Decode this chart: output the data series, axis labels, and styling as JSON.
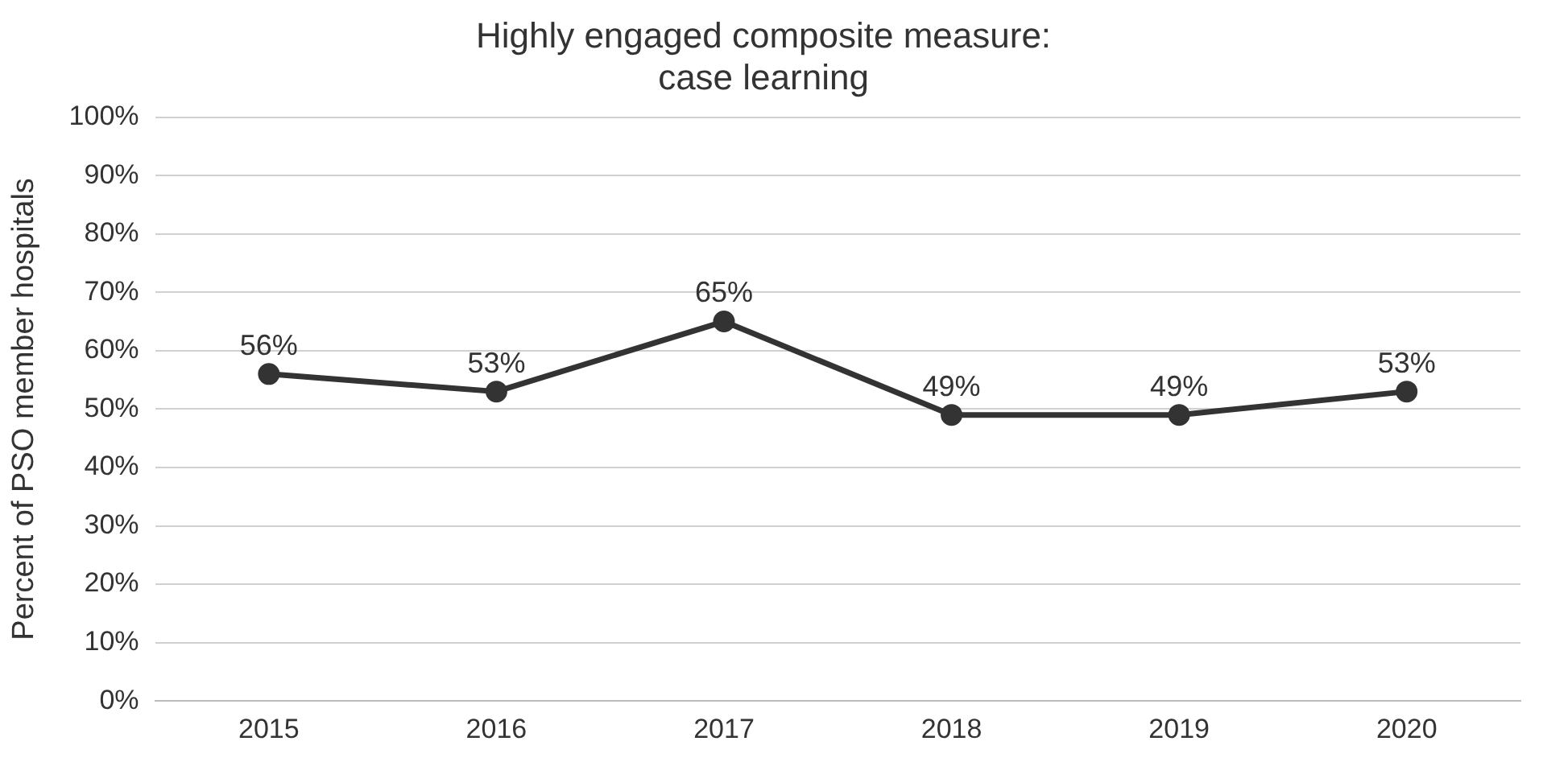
{
  "chart_data": {
    "type": "line",
    "title": "Highly engaged composite measure:\ncase learning",
    "ylabel": "Percent of PSO member hospitals",
    "categories": [
      "2015",
      "2016",
      "2017",
      "2018",
      "2019",
      "2020"
    ],
    "series": [
      {
        "color": "#333333",
        "values": [
          56,
          53,
          65,
          49,
          49,
          53
        ],
        "value_labels": [
          "56%",
          "53%",
          "65%",
          "49%",
          "49%",
          "53%"
        ]
      }
    ],
    "ylim": [
      0,
      100
    ],
    "yticks": [
      {
        "value": 0,
        "label": "0%"
      },
      {
        "value": 10,
        "label": "10%"
      },
      {
        "value": 20,
        "label": "20%"
      },
      {
        "value": 30,
        "label": "30%"
      },
      {
        "value": 40,
        "label": "40%"
      },
      {
        "value": 50,
        "label": "50%"
      },
      {
        "value": 60,
        "label": "60%"
      },
      {
        "value": 70,
        "label": "70%"
      },
      {
        "value": 80,
        "label": "80%"
      },
      {
        "value": 90,
        "label": "90%"
      },
      {
        "value": 100,
        "label": "100%"
      }
    ],
    "grid": "y",
    "marker": "circle",
    "line_style": "solid",
    "legend": false
  }
}
